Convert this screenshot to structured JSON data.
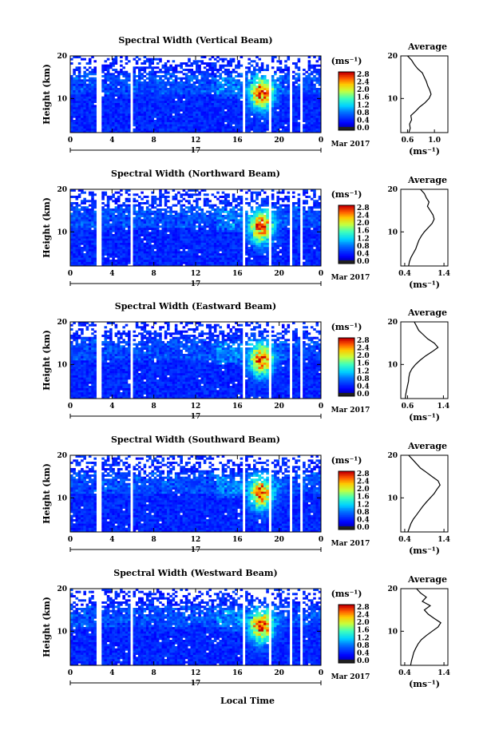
{
  "figure": {
    "x_axis_label": "Local Time",
    "colors": {
      "low": "#0000a0",
      "mid": "#00c8ff",
      "high": "#ff0000",
      "background": "#ffffff"
    }
  },
  "chart_data": [
    {
      "type": "heatmap",
      "title": "Spectral Width (Vertical Beam)",
      "ylabel": "Height (km)",
      "yticks": [
        "20",
        "10"
      ],
      "xticks": [
        "0",
        "4",
        "8",
        "12",
        "16",
        "20",
        "0"
      ],
      "date_center": "17",
      "date_right": "Mar 2017",
      "ylim": [
        2,
        20
      ],
      "xlim": [
        0,
        24
      ],
      "colorbar": {
        "unit": "(ms⁻¹)",
        "range": [
          0.0,
          2.8
        ],
        "tick_labels": [
          "2.8",
          "2.4",
          "2.0",
          "1.6",
          "1.2",
          "0.8",
          "0.4",
          "0.0"
        ]
      },
      "average_profile": {
        "title": "Average",
        "yticks": [
          "20",
          "10"
        ],
        "xticks": [
          "0.6",
          "1.0"
        ],
        "xlim": [
          0.5,
          1.2
        ],
        "xlabel": "(ms⁻¹)",
        "heights": [
          2,
          3,
          4,
          5,
          6,
          7,
          8,
          9,
          10,
          11,
          12,
          13,
          14,
          15,
          16,
          17,
          18,
          19,
          20
        ],
        "values": [
          0.62,
          0.64,
          0.63,
          0.66,
          0.65,
          0.72,
          0.78,
          0.86,
          0.92,
          0.95,
          0.93,
          0.9,
          0.88,
          0.85,
          0.82,
          0.75,
          0.7,
          0.66,
          0.6
        ]
      }
    },
    {
      "type": "heatmap",
      "title": "Spectral Width (Northward Beam)",
      "ylabel": "Height (km)",
      "yticks": [
        "20",
        "10"
      ],
      "xticks": [
        "0",
        "4",
        "8",
        "12",
        "16",
        "20",
        "0"
      ],
      "date_center": "17",
      "date_right": "Mar 2017",
      "ylim": [
        2,
        20
      ],
      "xlim": [
        0,
        24
      ],
      "colorbar": {
        "unit": "(ms⁻¹)",
        "range": [
          0.0,
          2.8
        ],
        "tick_labels": [
          "2.8",
          "2.4",
          "2.0",
          "1.6",
          "1.2",
          "0.8",
          "0.4",
          "0.0"
        ]
      },
      "average_profile": {
        "title": "Average",
        "yticks": [
          "20",
          "10"
        ],
        "xticks": [
          "0.4",
          "1.4"
        ],
        "xlim": [
          0.3,
          1.5
        ],
        "xlabel": "(ms⁻¹)",
        "heights": [
          2,
          3,
          4,
          5,
          6,
          7,
          8,
          9,
          10,
          11,
          12,
          13,
          14,
          15,
          16,
          17,
          18,
          19,
          20
        ],
        "values": [
          0.5,
          0.52,
          0.56,
          0.62,
          0.68,
          0.72,
          0.76,
          0.82,
          0.9,
          1.0,
          1.1,
          1.15,
          1.12,
          1.05,
          0.98,
          1.02,
          0.95,
          0.9,
          0.8
        ]
      }
    },
    {
      "type": "heatmap",
      "title": "Spectral Width (Eastward Beam)",
      "ylabel": "Height (km)",
      "yticks": [
        "20",
        "10"
      ],
      "xticks": [
        "0",
        "4",
        "8",
        "12",
        "16",
        "20",
        "0"
      ],
      "date_center": "17",
      "date_right": "Mar 2017",
      "ylim": [
        2,
        20
      ],
      "xlim": [
        0,
        24
      ],
      "colorbar": {
        "unit": "(ms⁻¹)",
        "range": [
          0.0,
          2.8
        ],
        "tick_labels": [
          "2.8",
          "2.4",
          "2.0",
          "1.6",
          "1.2",
          "0.8",
          "0.4",
          "0.0"
        ]
      },
      "average_profile": {
        "title": "Average",
        "yticks": [
          "20",
          "10"
        ],
        "xticks": [
          "0.6",
          "1.4"
        ],
        "xlim": [
          0.45,
          1.5
        ],
        "xlabel": "(ms⁻¹)",
        "heights": [
          2,
          3,
          4,
          5,
          6,
          7,
          8,
          9,
          10,
          11,
          12,
          13,
          14,
          15,
          16,
          17,
          18,
          19,
          20
        ],
        "values": [
          0.55,
          0.56,
          0.58,
          0.6,
          0.62,
          0.63,
          0.65,
          0.7,
          0.78,
          0.88,
          1.0,
          1.15,
          1.28,
          1.2,
          1.05,
          0.95,
          0.85,
          0.8,
          0.75
        ]
      }
    },
    {
      "type": "heatmap",
      "title": "Spectral Width (Southward Beam)",
      "ylabel": "Height (km)",
      "yticks": [
        "20",
        "10"
      ],
      "xticks": [
        "0",
        "4",
        "8",
        "12",
        "16",
        "20",
        "0"
      ],
      "date_center": "17",
      "date_right": "Mar 2017",
      "ylim": [
        2,
        20
      ],
      "xlim": [
        0,
        24
      ],
      "colorbar": {
        "unit": "(ms⁻¹)",
        "range": [
          0.0,
          2.8
        ],
        "tick_labels": [
          "2.8",
          "2.4",
          "2.0",
          "1.6",
          "1.2",
          "0.8",
          "0.4",
          "0.0"
        ]
      },
      "average_profile": {
        "title": "Average",
        "yticks": [
          "20",
          "10"
        ],
        "xticks": [
          "0.4",
          "1.4"
        ],
        "xlim": [
          0.3,
          1.5
        ],
        "xlabel": "(ms⁻¹)",
        "heights": [
          2,
          3,
          4,
          5,
          6,
          7,
          8,
          9,
          10,
          11,
          12,
          13,
          14,
          15,
          16,
          17,
          18,
          19,
          20
        ],
        "values": [
          0.48,
          0.52,
          0.56,
          0.62,
          0.7,
          0.78,
          0.86,
          0.95,
          1.05,
          1.15,
          1.22,
          1.3,
          1.25,
          1.1,
          0.95,
          0.8,
          0.7,
          0.6,
          0.5
        ]
      }
    },
    {
      "type": "heatmap",
      "title": "Spectral Width (Westward Beam)",
      "ylabel": "Height (km)",
      "yticks": [
        "20",
        "10"
      ],
      "xticks": [
        "0",
        "4",
        "8",
        "12",
        "16",
        "20",
        "0"
      ],
      "date_center": "17",
      "date_right": "Mar 2017",
      "ylim": [
        2,
        20
      ],
      "xlim": [
        0,
        24
      ],
      "colorbar": {
        "unit": "(ms⁻¹)",
        "range": [
          0.0,
          2.8
        ],
        "tick_labels": [
          "2.8",
          "2.4",
          "2.0",
          "1.6",
          "1.2",
          "0.8",
          "0.4",
          "0.0"
        ]
      },
      "average_profile": {
        "title": "Average",
        "yticks": [
          "20",
          "10"
        ],
        "xticks": [
          "0.4",
          "1.4"
        ],
        "xlim": [
          0.3,
          1.5
        ],
        "xlabel": "(ms⁻¹)",
        "heights": [
          2,
          3,
          4,
          5,
          6,
          7,
          8,
          9,
          10,
          11,
          12,
          13,
          14,
          15,
          16,
          17,
          18,
          19,
          20
        ],
        "values": [
          0.55,
          0.57,
          0.6,
          0.63,
          0.68,
          0.74,
          0.82,
          0.95,
          1.1,
          1.25,
          1.32,
          1.15,
          1.0,
          0.9,
          1.05,
          0.85,
          0.95,
          0.8,
          0.7
        ]
      }
    }
  ]
}
